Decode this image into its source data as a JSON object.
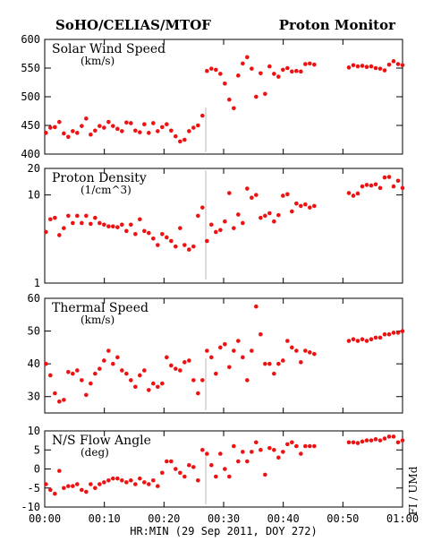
{
  "header": {
    "left": "SoHO/CELIAS/MTOF",
    "right": "Proton Monitor"
  },
  "credit": "FI / UMd",
  "time_axis": {
    "label": "HR:MIN (29 Sep 2011, DOY 272)",
    "xlim": [
      0,
      60
    ],
    "xticks": [
      {
        "value": 0,
        "label": "00:00"
      },
      {
        "value": 10,
        "label": "00:10"
      },
      {
        "value": 20,
        "label": "00:20"
      },
      {
        "value": 30,
        "label": "00:30"
      },
      {
        "value": 40,
        "label": "00:40"
      },
      {
        "value": 50,
        "label": "00:50"
      },
      {
        "value": 60,
        "label": "01:00"
      }
    ]
  },
  "chart_data": [
    {
      "type": "scatter",
      "title": "Solar Wind Speed",
      "subtitle": "(km/s)",
      "color": "#ee1111",
      "yscale": "linear",
      "ylim": [
        400,
        600
      ],
      "yticks": [
        400,
        450,
        500,
        550,
        600
      ],
      "x": [
        0.2,
        0.95,
        1.7,
        2.45,
        3.2,
        3.95,
        4.7,
        5.45,
        6.2,
        6.95,
        7.7,
        8.45,
        9.2,
        9.95,
        10.7,
        11.45,
        12.2,
        12.95,
        13.7,
        14.45,
        15.2,
        15.95,
        16.7,
        17.45,
        18.2,
        18.95,
        19.7,
        20.45,
        21.2,
        21.95,
        22.7,
        23.45,
        24.2,
        24.95,
        25.7,
        26.45,
        27.2,
        27.95,
        28.7,
        29.45,
        30.2,
        30.95,
        31.7,
        32.45,
        33.2,
        33.95,
        34.7,
        35.45,
        36.2,
        36.95,
        37.7,
        38.45,
        39.2,
        39.95,
        40.7,
        41.45,
        42.2,
        42.95,
        43.7,
        44.45,
        45.2,
        51,
        51.75,
        52.5,
        53.25,
        54,
        54.75,
        55.5,
        56.25,
        57,
        57.75,
        58.5,
        59.25,
        60
      ],
      "values": [
        437,
        446,
        447,
        456,
        436,
        430,
        440,
        437,
        449,
        462,
        434,
        441,
        449,
        446,
        456,
        449,
        444,
        440,
        455,
        454,
        441,
        438,
        452,
        437,
        454,
        440,
        447,
        452,
        441,
        431,
        422,
        425,
        440,
        446,
        450,
        467,
        545,
        549,
        547,
        540,
        523,
        495,
        480,
        537,
        558,
        569,
        549,
        500,
        541,
        505,
        553,
        540,
        535,
        547,
        550,
        544,
        545,
        544,
        557,
        558,
        556,
        551,
        555,
        553,
        554,
        552,
        553,
        550,
        549,
        546,
        556,
        562,
        557,
        555
      ]
    },
    {
      "type": "scatter",
      "title": "Proton Density",
      "subtitle": "(1/cm^3)",
      "color": "#ee1111",
      "yscale": "log",
      "ylim": [
        1,
        20
      ],
      "yticks": [
        1,
        10,
        20
      ],
      "x": [
        0.2,
        0.95,
        1.7,
        2.45,
        3.2,
        3.95,
        4.7,
        5.45,
        6.2,
        6.95,
        7.7,
        8.45,
        9.2,
        9.95,
        10.7,
        11.45,
        12.2,
        12.95,
        13.7,
        14.45,
        15.2,
        15.95,
        16.7,
        17.45,
        18.2,
        18.95,
        19.7,
        20.45,
        21.2,
        21.95,
        22.7,
        23.45,
        24.2,
        24.95,
        25.7,
        26.45,
        27.2,
        27.95,
        28.7,
        29.45,
        30.2,
        30.95,
        31.7,
        32.45,
        33.2,
        33.95,
        34.7,
        35.45,
        36.2,
        36.95,
        37.7,
        38.45,
        39.2,
        39.95,
        40.7,
        41.45,
        42.2,
        42.95,
        43.7,
        44.45,
        45.2,
        51,
        51.75,
        52.5,
        53.25,
        54,
        54.75,
        55.5,
        56.25,
        57,
        57.75,
        58.5,
        59.25,
        60
      ],
      "values": [
        3.8,
        5.3,
        5.5,
        3.5,
        4.2,
        5.8,
        4.8,
        5.8,
        4.8,
        5.8,
        4.7,
        5.5,
        4.8,
        4.6,
        4.4,
        4.4,
        4.3,
        4.6,
        3.9,
        4.6,
        3.6,
        5.3,
        3.9,
        3.7,
        3.2,
        2.7,
        3.6,
        3.3,
        3.0,
        2.6,
        4.2,
        2.7,
        2.4,
        2.6,
        5.8,
        7.2,
        3.0,
        4.6,
        3.8,
        4.0,
        5.0,
        10.5,
        4.2,
        6.0,
        4.8,
        11.8,
        9.3,
        10.0,
        5.5,
        5.8,
        6.2,
        5.0,
        5.9,
        9.8,
        10.2,
        6.5,
        8.0,
        7.5,
        7.8,
        7.2,
        7.5,
        10.5,
        9.8,
        10.4,
        12.5,
        13.0,
        12.8,
        13.2,
        12.0,
        15.8,
        16.0,
        12.5,
        14.5,
        12.0
      ]
    },
    {
      "type": "scatter",
      "title": "Thermal Speed",
      "subtitle": "(km/s)",
      "color": "#ee1111",
      "yscale": "linear",
      "ylim": [
        25,
        60
      ],
      "yticks": [
        30,
        40,
        50,
        60
      ],
      "x": [
        0.2,
        0.95,
        1.7,
        2.45,
        3.2,
        3.95,
        4.7,
        5.45,
        6.2,
        6.95,
        7.7,
        8.45,
        9.2,
        9.95,
        10.7,
        11.45,
        12.2,
        12.95,
        13.7,
        14.45,
        15.2,
        15.95,
        16.7,
        17.45,
        18.2,
        18.95,
        19.7,
        20.45,
        21.2,
        21.95,
        22.7,
        23.45,
        24.2,
        24.95,
        25.7,
        26.45,
        27.2,
        27.95,
        28.7,
        29.45,
        30.2,
        30.95,
        31.7,
        32.45,
        33.2,
        33.95,
        34.7,
        35.45,
        36.2,
        36.95,
        37.7,
        38.45,
        39.2,
        39.95,
        40.7,
        41.45,
        42.2,
        42.95,
        43.7,
        44.45,
        45.2,
        51,
        51.75,
        52.5,
        53.25,
        54,
        54.75,
        55.5,
        56.25,
        57,
        57.75,
        58.5,
        59.25,
        60
      ],
      "values": [
        40,
        36.5,
        31,
        28.5,
        29,
        37.5,
        37,
        38,
        35,
        30.5,
        34,
        37,
        38.5,
        41,
        44,
        40,
        42,
        38,
        37,
        35,
        33,
        36.5,
        38,
        32,
        34,
        33,
        34,
        42,
        39.5,
        38.5,
        38,
        40.5,
        41,
        35,
        31,
        35,
        44,
        42,
        37,
        45,
        46,
        39,
        44,
        47,
        42,
        35,
        44,
        57.5,
        49,
        40,
        40,
        37,
        40,
        41,
        47,
        45,
        44,
        40.5,
        44,
        43.5,
        43,
        47,
        47.5,
        47,
        47.5,
        47,
        47.5,
        48,
        48,
        49,
        49,
        49.5,
        49.5,
        50
      ]
    },
    {
      "type": "scatter",
      "title": "N/S Flow Angle",
      "subtitle": "(deg)",
      "color": "#ee1111",
      "yscale": "linear",
      "ylim": [
        -10,
        10
      ],
      "yticks": [
        -10,
        -5,
        0,
        5,
        10
      ],
      "x": [
        0.2,
        0.95,
        1.7,
        2.45,
        3.2,
        3.95,
        4.7,
        5.45,
        6.2,
        6.95,
        7.7,
        8.45,
        9.2,
        9.95,
        10.7,
        11.45,
        12.2,
        12.95,
        13.7,
        14.45,
        15.2,
        15.95,
        16.7,
        17.45,
        18.2,
        18.95,
        19.7,
        20.45,
        21.2,
        21.95,
        22.7,
        23.45,
        24.2,
        24.95,
        25.7,
        26.45,
        27.2,
        27.95,
        28.7,
        29.45,
        30.2,
        30.95,
        31.7,
        32.45,
        33.2,
        33.95,
        34.7,
        35.45,
        36.2,
        36.95,
        37.7,
        38.45,
        39.2,
        39.95,
        40.7,
        41.45,
        42.2,
        42.95,
        43.7,
        44.45,
        45.2,
        51,
        51.75,
        52.5,
        53.25,
        54,
        54.75,
        55.5,
        56.25,
        57,
        57.75,
        58.5,
        59.25,
        60
      ],
      "values": [
        -4,
        -5.5,
        -6.5,
        -0.5,
        -5,
        -4.5,
        -4.5,
        -4,
        -5.5,
        -6,
        -4,
        -5,
        -4,
        -3.5,
        -3,
        -2.5,
        -2.5,
        -3,
        -3.5,
        -3,
        -4,
        -2.5,
        -3.5,
        -4,
        -3,
        -4.5,
        -1,
        2,
        2,
        0,
        -1,
        -2,
        1,
        0.5,
        -3,
        5,
        4,
        1,
        -2,
        4,
        0,
        -2,
        6,
        2,
        4.5,
        2,
        4.5,
        7,
        5,
        -1.5,
        5.5,
        5,
        3,
        4.5,
        6.5,
        7,
        6,
        4,
        6,
        6,
        6,
        7,
        7,
        6.8,
        7.2,
        7.5,
        7.5,
        7.8,
        7.5,
        8,
        8.5,
        8.5,
        7,
        7.5
      ]
    }
  ]
}
